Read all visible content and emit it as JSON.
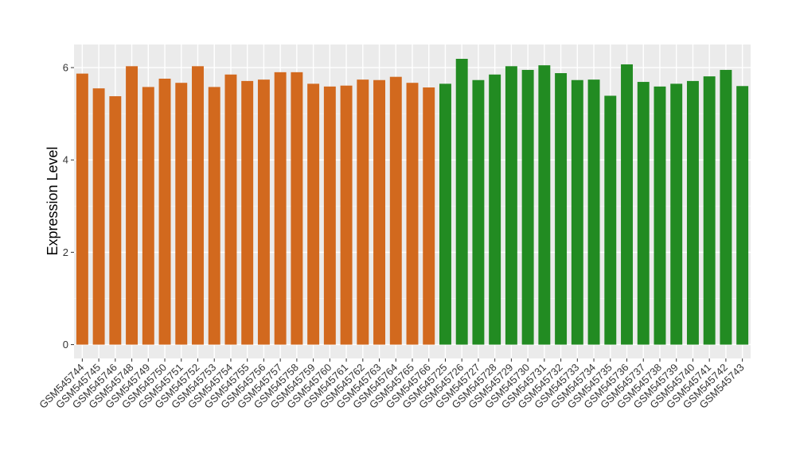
{
  "chart_data": {
    "type": "bar",
    "title": "",
    "xlabel": "",
    "ylabel": "Expression Level",
    "ylim": [
      -0.3,
      6.5
    ],
    "yticks": [
      0,
      2,
      4,
      6
    ],
    "grid": true,
    "panel_background": "#ebebeb",
    "categories": [
      "GSM545744",
      "GSM545745",
      "GSM545746",
      "GSM545748",
      "GSM545749",
      "GSM545750",
      "GSM545751",
      "GSM545752",
      "GSM545753",
      "GSM545754",
      "GSM545755",
      "GSM545756",
      "GSM545757",
      "GSM545758",
      "GSM545759",
      "GSM545760",
      "GSM545761",
      "GSM545762",
      "GSM545763",
      "GSM545764",
      "GSM545765",
      "GSM545766",
      "GSM545725",
      "GSM545726",
      "GSM545727",
      "GSM545728",
      "GSM545729",
      "GSM545730",
      "GSM545731",
      "GSM545732",
      "GSM545733",
      "GSM545734",
      "GSM545735",
      "GSM545736",
      "GSM545737",
      "GSM545738",
      "GSM545739",
      "GSM545740",
      "GSM545741",
      "GSM545742",
      "GSM545743"
    ],
    "values": [
      5.87,
      5.55,
      5.38,
      6.03,
      5.58,
      5.76,
      5.67,
      6.03,
      5.58,
      5.85,
      5.71,
      5.74,
      5.9,
      5.9,
      5.65,
      5.59,
      5.61,
      5.74,
      5.73,
      5.8,
      5.67,
      5.57,
      5.65,
      6.19,
      5.73,
      5.85,
      6.03,
      5.95,
      6.05,
      5.88,
      5.73,
      5.74,
      5.39,
      6.07,
      5.69,
      5.59,
      5.65,
      5.71,
      5.81,
      5.95,
      5.6
    ],
    "bar_colors": [
      "#d2691e",
      "#d2691e",
      "#d2691e",
      "#d2691e",
      "#d2691e",
      "#d2691e",
      "#d2691e",
      "#d2691e",
      "#d2691e",
      "#d2691e",
      "#d2691e",
      "#d2691e",
      "#d2691e",
      "#d2691e",
      "#d2691e",
      "#d2691e",
      "#d2691e",
      "#d2691e",
      "#d2691e",
      "#d2691e",
      "#d2691e",
      "#d2691e",
      "#228b22",
      "#228b22",
      "#228b22",
      "#228b22",
      "#228b22",
      "#228b22",
      "#228b22",
      "#228b22",
      "#228b22",
      "#228b22",
      "#228b22",
      "#228b22",
      "#228b22",
      "#228b22",
      "#228b22",
      "#228b22",
      "#228b22",
      "#228b22",
      "#228b22"
    ]
  }
}
